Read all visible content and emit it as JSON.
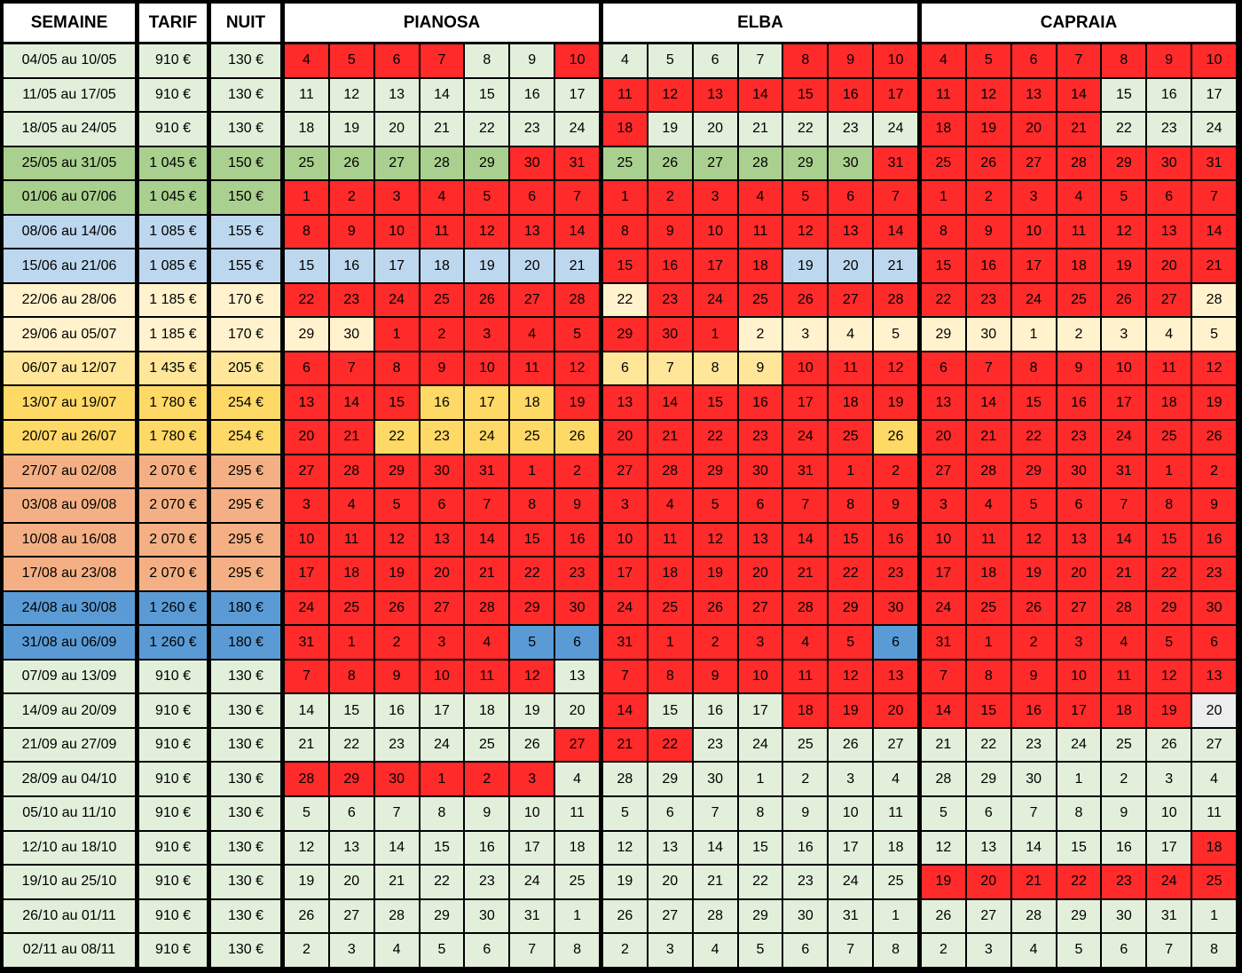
{
  "colors": {
    "red": "#ff2a2a",
    "light_green": "#e2efda",
    "green": "#a9d08e",
    "light_blue": "#bdd7ee",
    "cream": "#fff2cc",
    "light_yellow": "#ffe699",
    "yellow": "#ffd966",
    "orange": "#f4b084",
    "blue": "#5b9bd5",
    "grey": "#ededed"
  },
  "headers": {
    "semaine": "SEMAINE",
    "tarif": "TARIF",
    "nuit": "NUIT",
    "properties": [
      "PIANOSA",
      "ELBA",
      "CAPRAIA"
    ]
  },
  "rows": [
    {
      "semaine": "04/05 au 10/05",
      "tarif": "910 €",
      "nuit": "130 €",
      "color": "light_green",
      "days": [
        4,
        5,
        6,
        7,
        8,
        9,
        10
      ],
      "status": [
        "RRRRAAR",
        "AAAARRR",
        "RRRRRRR"
      ]
    },
    {
      "semaine": "11/05 au 17/05",
      "tarif": "910 €",
      "nuit": "130 €",
      "color": "light_green",
      "days": [
        11,
        12,
        13,
        14,
        15,
        16,
        17
      ],
      "status": [
        "AAAAAAA",
        "RRRRRRR",
        "RRRRAAA"
      ]
    },
    {
      "semaine": "18/05 au 24/05",
      "tarif": "910 €",
      "nuit": "130 €",
      "color": "light_green",
      "days": [
        18,
        19,
        20,
        21,
        22,
        23,
        24
      ],
      "status": [
        "AAAAAAA",
        "RAAAAAA",
        "RRRRAAA"
      ]
    },
    {
      "semaine": "25/05 au 31/05",
      "tarif": "1 045 €",
      "nuit": "150 €",
      "color": "green",
      "days": [
        25,
        26,
        27,
        28,
        29,
        30,
        31
      ],
      "status": [
        "AAAAARR",
        "AAAAAAR",
        "RRRRRRR"
      ]
    },
    {
      "semaine": "01/06 au 07/06",
      "tarif": "1 045 €",
      "nuit": "150 €",
      "color": "green",
      "days": [
        1,
        2,
        3,
        4,
        5,
        6,
        7
      ],
      "status": [
        "RRRRRRR",
        "RRRRRRR",
        "RRRRRRR"
      ]
    },
    {
      "semaine": "08/06 au 14/06",
      "tarif": "1 085 €",
      "nuit": "155 €",
      "color": "light_blue",
      "days": [
        8,
        9,
        10,
        11,
        12,
        13,
        14
      ],
      "status": [
        "RRRRRRR",
        "RRRRRRR",
        "RRRRRRR"
      ]
    },
    {
      "semaine": "15/06 au 21/06",
      "tarif": "1 085 €",
      "nuit": "155 €",
      "color": "light_blue",
      "days": [
        15,
        16,
        17,
        18,
        19,
        20,
        21
      ],
      "status": [
        "AAAAAAA",
        "RRRRAAA",
        "RRRRRRR"
      ]
    },
    {
      "semaine": "22/06 au 28/06",
      "tarif": "1 185 €",
      "nuit": "170 €",
      "color": "cream",
      "days": [
        22,
        23,
        24,
        25,
        26,
        27,
        28
      ],
      "status": [
        "RRRRRRR",
        "ARRRRRR",
        "RRRRRRA"
      ]
    },
    {
      "semaine": "29/06 au 05/07",
      "tarif": "1 185 €",
      "nuit": "170 €",
      "color": "cream",
      "days": [
        29,
        30,
        1,
        2,
        3,
        4,
        5
      ],
      "status": [
        "AARRRRR",
        "RRRAAAA",
        "AAAAAAA"
      ]
    },
    {
      "semaine": "06/07 au 12/07",
      "tarif": "1 435 €",
      "nuit": "205 €",
      "color": "light_yellow",
      "days": [
        6,
        7,
        8,
        9,
        10,
        11,
        12
      ],
      "status": [
        "RRRRRRR",
        "AAAARRR",
        "RRRRRRR"
      ]
    },
    {
      "semaine": "13/07 au 19/07",
      "tarif": "1 780 €",
      "nuit": "254 €",
      "color": "yellow",
      "days": [
        13,
        14,
        15,
        16,
        17,
        18,
        19
      ],
      "status": [
        "RRRAAAR",
        "RRRRRRR",
        "RRRRRRR"
      ]
    },
    {
      "semaine": "20/07 au 26/07",
      "tarif": "1 780 €",
      "nuit": "254 €",
      "color": "yellow",
      "days": [
        20,
        21,
        22,
        23,
        24,
        25,
        26
      ],
      "status": [
        "RRAAAAA",
        "RRRRRRA",
        "RRRRRRR"
      ]
    },
    {
      "semaine": "27/07 au 02/08",
      "tarif": "2 070 €",
      "nuit": "295 €",
      "color": "orange",
      "days": [
        27,
        28,
        29,
        30,
        31,
        1,
        2
      ],
      "status": [
        "RRRRRRR",
        "RRRRRRR",
        "RRRRRRR"
      ]
    },
    {
      "semaine": "03/08 au 09/08",
      "tarif": "2 070 €",
      "nuit": "295 €",
      "color": "orange",
      "days": [
        3,
        4,
        5,
        6,
        7,
        8,
        9
      ],
      "status": [
        "RRRRRRR",
        "RRRRRRR",
        "RRRRRRR"
      ]
    },
    {
      "semaine": "10/08 au 16/08",
      "tarif": "2 070 €",
      "nuit": "295 €",
      "color": "orange",
      "days": [
        10,
        11,
        12,
        13,
        14,
        15,
        16
      ],
      "status": [
        "RRRRRRR",
        "RRRRRRR",
        "RRRRRRR"
      ]
    },
    {
      "semaine": "17/08 au 23/08",
      "tarif": "2 070 €",
      "nuit": "295 €",
      "color": "orange",
      "days": [
        17,
        18,
        19,
        20,
        21,
        22,
        23
      ],
      "status": [
        "RRRRRRR",
        "RRRRRRR",
        "RRRRRRR"
      ]
    },
    {
      "semaine": "24/08 au 30/08",
      "tarif": "1 260 €",
      "nuit": "180 €",
      "color": "blue",
      "days": [
        24,
        25,
        26,
        27,
        28,
        29,
        30
      ],
      "status": [
        "RRRRRRR",
        "RRRRRRR",
        "RRRRRRR"
      ]
    },
    {
      "semaine": "31/08 au 06/09",
      "tarif": "1 260 €",
      "nuit": "180 €",
      "color": "blue",
      "days": [
        31,
        1,
        2,
        3,
        4,
        5,
        6
      ],
      "status": [
        "RRRRRAA",
        "RRRRRRA",
        "RRRRRRR"
      ]
    },
    {
      "semaine": "07/09 au 13/09",
      "tarif": "910 €",
      "nuit": "130 €",
      "color": "light_green",
      "days": [
        7,
        8,
        9,
        10,
        11,
        12,
        13
      ],
      "status": [
        "RRRRRRA",
        "RRRRRRR",
        "RRRRRRR"
      ]
    },
    {
      "semaine": "14/09 au 20/09",
      "tarif": "910 €",
      "nuit": "130 €",
      "color": "light_green",
      "days": [
        14,
        15,
        16,
        17,
        18,
        19,
        20
      ],
      "status": [
        "AAAAAAA",
        "RAAARRR",
        "RRRRRRG"
      ]
    },
    {
      "semaine": "21/09 au 27/09",
      "tarif": "910 €",
      "nuit": "130 €",
      "color": "light_green",
      "days": [
        21,
        22,
        23,
        24,
        25,
        26,
        27
      ],
      "status": [
        "AAAAAAR",
        "RRAAAAA",
        "AAAAAAA"
      ]
    },
    {
      "semaine": "28/09 au 04/10",
      "tarif": "910 €",
      "nuit": "130 €",
      "color": "light_green",
      "days": [
        28,
        29,
        30,
        1,
        2,
        3,
        4
      ],
      "status": [
        "RRRRRRA",
        "AAAAAAA",
        "AAAAAAA"
      ]
    },
    {
      "semaine": "05/10 au 11/10",
      "tarif": "910 €",
      "nuit": "130 €",
      "color": "light_green",
      "days": [
        5,
        6,
        7,
        8,
        9,
        10,
        11
      ],
      "status": [
        "AAAAAAA",
        "AAAAAAA",
        "AAAAAAA"
      ]
    },
    {
      "semaine": "12/10 au 18/10",
      "tarif": "910 €",
      "nuit": "130 €",
      "color": "light_green",
      "days": [
        12,
        13,
        14,
        15,
        16,
        17,
        18
      ],
      "status": [
        "AAAAAAA",
        "AAAAAAA",
        "AAAAAAR"
      ]
    },
    {
      "semaine": "19/10 au 25/10",
      "tarif": "910 €",
      "nuit": "130 €",
      "color": "light_green",
      "days": [
        19,
        20,
        21,
        22,
        23,
        24,
        25
      ],
      "status": [
        "AAAAAAA",
        "AAAAAAA",
        "RRRRRRR"
      ]
    },
    {
      "semaine": "26/10 au 01/11",
      "tarif": "910 €",
      "nuit": "130 €",
      "color": "light_green",
      "days": [
        26,
        27,
        28,
        29,
        30,
        31,
        1
      ],
      "status": [
        "AAAAAAA",
        "AAAAAAA",
        "AAAAAAA"
      ]
    },
    {
      "semaine": "02/11 au 08/11",
      "tarif": "910 €",
      "nuit": "130 €",
      "color": "light_green",
      "days": [
        2,
        3,
        4,
        5,
        6,
        7,
        8
      ],
      "status": [
        "AAAAAAA",
        "AAAAAAA",
        "AAAAAAA"
      ]
    }
  ]
}
